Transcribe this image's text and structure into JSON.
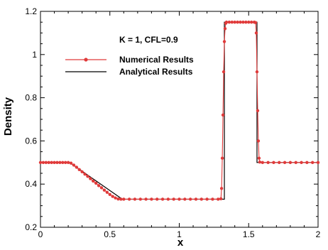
{
  "chart_data": {
    "type": "line",
    "xlabel": "x",
    "ylabel": "Density",
    "annotation": "K = 1,  CFL=0.9",
    "xlim": [
      0,
      2
    ],
    "ylim": [
      0.2,
      1.2
    ],
    "xticks": [
      0,
      0.5,
      1,
      1.5,
      2
    ],
    "yticks": [
      0.2,
      0.4,
      0.6,
      0.8,
      1,
      1.2
    ],
    "xtick_labels": [
      "0",
      "0.5",
      "1",
      "1.5",
      "2"
    ],
    "ytick_labels": [
      "0.2",
      "0.4",
      "0.6",
      "0.8",
      "1",
      "1.2"
    ],
    "grid": false,
    "legend_position": "top-left",
    "series": [
      {
        "name": "Numerical Results",
        "color": "#e03a3a",
        "marker": "circle",
        "points": [
          [
            0.0,
            0.5
          ],
          [
            0.02,
            0.5
          ],
          [
            0.04,
            0.5
          ],
          [
            0.06,
            0.5
          ],
          [
            0.08,
            0.5
          ],
          [
            0.1,
            0.5
          ],
          [
            0.12,
            0.5
          ],
          [
            0.14,
            0.5
          ],
          [
            0.16,
            0.5
          ],
          [
            0.18,
            0.5
          ],
          [
            0.2,
            0.5
          ],
          [
            0.22,
            0.497
          ],
          [
            0.24,
            0.488
          ],
          [
            0.26,
            0.478
          ],
          [
            0.28,
            0.467
          ],
          [
            0.3,
            0.457
          ],
          [
            0.32,
            0.446
          ],
          [
            0.34,
            0.436
          ],
          [
            0.36,
            0.425
          ],
          [
            0.38,
            0.414
          ],
          [
            0.4,
            0.404
          ],
          [
            0.42,
            0.393
          ],
          [
            0.44,
            0.383
          ],
          [
            0.46,
            0.372
          ],
          [
            0.48,
            0.362
          ],
          [
            0.5,
            0.352
          ],
          [
            0.52,
            0.343
          ],
          [
            0.54,
            0.336
          ],
          [
            0.56,
            0.331
          ],
          [
            0.58,
            0.33
          ],
          [
            0.6,
            0.33
          ],
          [
            0.64,
            0.33
          ],
          [
            0.68,
            0.33
          ],
          [
            0.72,
            0.33
          ],
          [
            0.76,
            0.33
          ],
          [
            0.8,
            0.33
          ],
          [
            0.84,
            0.33
          ],
          [
            0.88,
            0.33
          ],
          [
            0.92,
            0.33
          ],
          [
            0.96,
            0.33
          ],
          [
            1.0,
            0.33
          ],
          [
            1.04,
            0.33
          ],
          [
            1.08,
            0.33
          ],
          [
            1.12,
            0.33
          ],
          [
            1.16,
            0.33
          ],
          [
            1.2,
            0.33
          ],
          [
            1.24,
            0.33
          ],
          [
            1.28,
            0.33
          ],
          [
            1.3,
            0.332
          ],
          [
            1.305,
            0.38
          ],
          [
            1.31,
            0.52
          ],
          [
            1.315,
            0.72
          ],
          [
            1.32,
            0.92
          ],
          [
            1.325,
            1.06
          ],
          [
            1.33,
            1.12
          ],
          [
            1.335,
            1.145
          ],
          [
            1.34,
            1.15
          ],
          [
            1.36,
            1.15
          ],
          [
            1.38,
            1.15
          ],
          [
            1.4,
            1.15
          ],
          [
            1.42,
            1.15
          ],
          [
            1.44,
            1.15
          ],
          [
            1.46,
            1.15
          ],
          [
            1.48,
            1.15
          ],
          [
            1.5,
            1.15
          ],
          [
            1.52,
            1.15
          ],
          [
            1.54,
            1.15
          ],
          [
            1.55,
            1.148
          ],
          [
            1.555,
            1.1
          ],
          [
            1.56,
            0.92
          ],
          [
            1.565,
            0.74
          ],
          [
            1.57,
            0.6
          ],
          [
            1.575,
            0.52
          ],
          [
            1.58,
            0.502
          ],
          [
            1.6,
            0.5
          ],
          [
            1.64,
            0.5
          ],
          [
            1.68,
            0.5
          ],
          [
            1.72,
            0.5
          ],
          [
            1.76,
            0.5
          ],
          [
            1.8,
            0.5
          ],
          [
            1.84,
            0.5
          ],
          [
            1.88,
            0.5
          ],
          [
            1.92,
            0.5
          ],
          [
            1.96,
            0.5
          ],
          [
            2.0,
            0.5
          ]
        ]
      },
      {
        "name": "Analytical Results",
        "color": "#000000",
        "marker": "none",
        "points": [
          [
            0.0,
            0.5
          ],
          [
            0.21,
            0.5
          ],
          [
            0.59,
            0.33
          ],
          [
            1.325,
            0.33
          ],
          [
            1.325,
            1.15
          ],
          [
            1.56,
            1.15
          ],
          [
            1.56,
            0.5
          ],
          [
            2.0,
            0.5
          ]
        ]
      }
    ]
  }
}
